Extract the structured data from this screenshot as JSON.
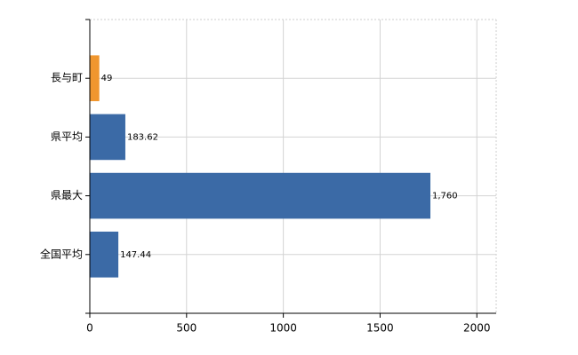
{
  "chart_data": {
    "type": "bar",
    "orientation": "horizontal",
    "categories": [
      "長与町",
      "県平均",
      "県最大",
      "全国平均"
    ],
    "values": [
      49,
      183.62,
      1760,
      147.44
    ],
    "value_labels": [
      "49",
      "183.62",
      "1,760",
      "147.44"
    ],
    "colors": [
      "#f0962e",
      "#3b6aa6",
      "#3b6aa6",
      "#3b6aa6"
    ],
    "xlim": [
      0,
      2100
    ],
    "xticks": [
      0,
      500,
      1000,
      1500,
      2000
    ],
    "grid": true
  }
}
